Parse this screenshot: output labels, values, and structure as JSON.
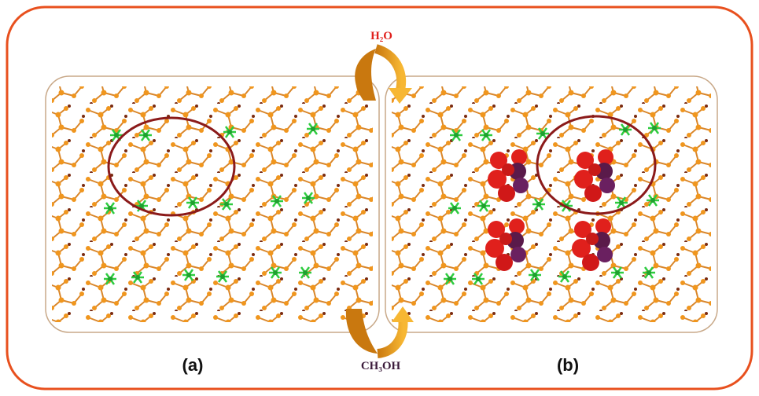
{
  "labels": {
    "top_arrow": "H₂O",
    "bottom_arrow": "CH₃OH",
    "panel_a": "(a)",
    "panel_b": "(b)"
  }
}
